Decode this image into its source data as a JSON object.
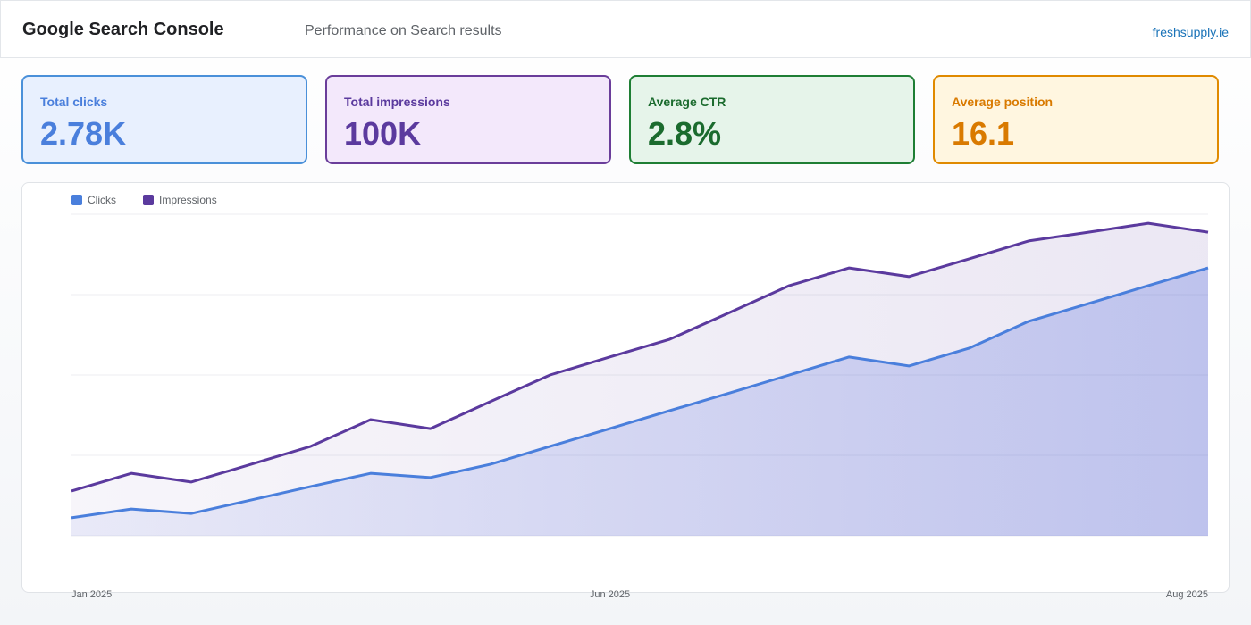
{
  "header": {
    "title": "Google Search Console",
    "subtitle": "Performance on Search results",
    "site": "freshsupply.ie"
  },
  "metrics": [
    {
      "label": "Total clicks",
      "value": "2.78K"
    },
    {
      "label": "Total impressions",
      "value": "100K"
    },
    {
      "label": "Average CTR",
      "value": "2.8%"
    },
    {
      "label": "Average position",
      "value": "16.1"
    }
  ],
  "chart_data": {
    "type": "area",
    "categories": [
      "Jan 2025",
      null,
      null,
      null,
      null,
      null,
      null,
      null,
      null,
      "Jun 2025",
      null,
      null,
      null,
      null,
      null,
      null,
      null,
      null,
      null,
      "Aug 2025"
    ],
    "series": [
      {
        "name": "Clicks",
        "color": "#4a7fdc",
        "values": [
          5.6,
          8.3,
          6.9,
          11.1,
          15.3,
          19.4,
          18.1,
          22.2,
          27.8,
          33.3,
          38.9,
          44.4,
          50,
          55.6,
          52.8,
          58.3,
          66.7,
          72.2,
          77.8,
          83.3
        ]
      },
      {
        "name": "Impressions",
        "color": "#5b3a9e",
        "values": [
          13.9,
          19.4,
          16.7,
          22.2,
          27.8,
          36.1,
          33.3,
          41.7,
          50,
          55.6,
          61.1,
          69.4,
          77.8,
          83.3,
          80.6,
          86.1,
          91.7,
          94.4,
          97.2,
          94.4
        ]
      }
    ],
    "ylim": [
      0,
      100
    ],
    "grid": true,
    "ygrid": [
      0,
      25,
      50,
      75,
      100
    ],
    "legend": "top-left"
  }
}
